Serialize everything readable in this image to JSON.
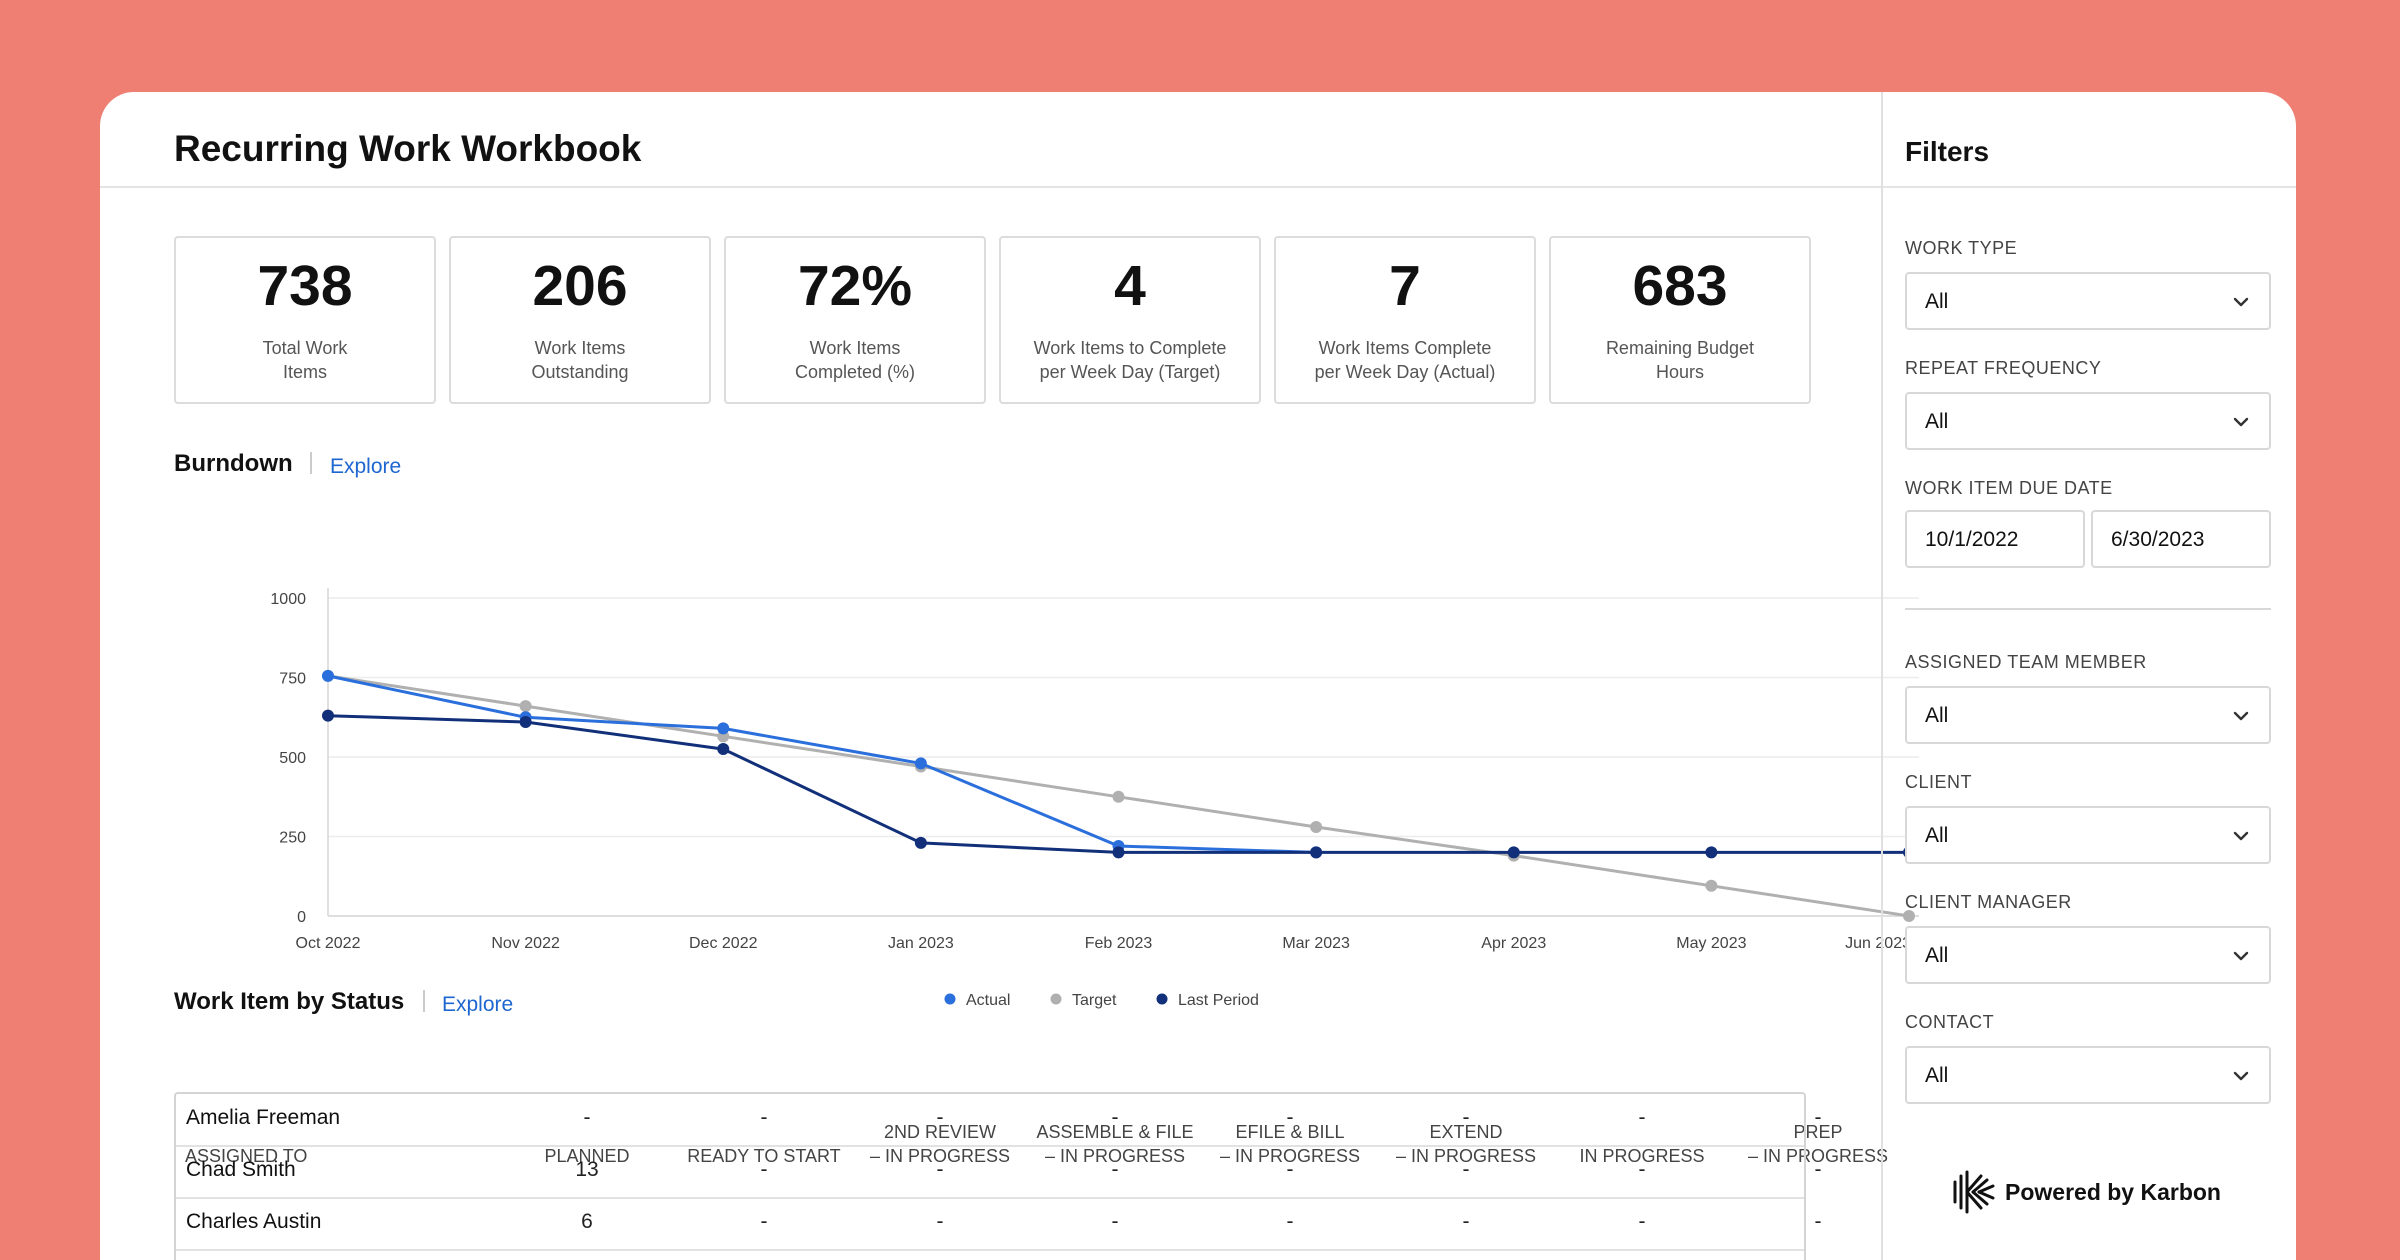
{
  "page": {
    "title": "Recurring Work Workbook"
  },
  "kpis": [
    {
      "value": "738",
      "label_line1": "Total Work",
      "label_line2": "Items"
    },
    {
      "value": "206",
      "label_line1": "Work Items",
      "label_line2": "Outstanding"
    },
    {
      "value": "72%",
      "label_line1": "Work Items",
      "label_line2": "Completed (%)"
    },
    {
      "value": "4",
      "label_line1": "Work Items to Complete",
      "label_line2": "per Week Day (Target)"
    },
    {
      "value": "7",
      "label_line1": "Work Items Complete",
      "label_line2": "per Week Day (Actual)"
    },
    {
      "value": "683",
      "label_line1": "Remaining Budget",
      "label_line2": "Hours"
    }
  ],
  "burndown": {
    "title": "Burndown",
    "explore": "Explore"
  },
  "chart_data": {
    "type": "line",
    "title": "Burndown",
    "categories": [
      "Oct 2022",
      "Nov 2022",
      "Dec 2022",
      "Jan 2023",
      "Feb 2023",
      "Mar 2023",
      "Apr 2023",
      "May 2023",
      "Jun 2023"
    ],
    "yticks": [
      "0",
      "250",
      "500",
      "750",
      "1000"
    ],
    "ylim": [
      0,
      1000
    ],
    "grid": true,
    "legend_position": "bottom",
    "series": [
      {
        "name": "Actual",
        "color": "#2a6fdb",
        "values": [
          755,
          625,
          590,
          480,
          220,
          200,
          null,
          null,
          null
        ]
      },
      {
        "name": "Target",
        "color": "#b0b0b0",
        "values": [
          755,
          660,
          565,
          470,
          375,
          280,
          190,
          95,
          0
        ]
      },
      {
        "name": "Last Period",
        "color": "#12307a",
        "values": [
          630,
          610,
          525,
          230,
          200,
          200,
          200,
          200,
          200
        ]
      }
    ]
  },
  "status": {
    "title": "Work Item by Status",
    "explore": "Explore",
    "columns": [
      {
        "line1": "ASSIGNED TO",
        "line2": ""
      },
      {
        "line1": "PLANNED",
        "line2": ""
      },
      {
        "line1": "READY TO START",
        "line2": ""
      },
      {
        "line1": "2ND REVIEW",
        "line2": "– IN PROGRESS"
      },
      {
        "line1": "ASSEMBLE & FILE",
        "line2": "– IN PROGRESS"
      },
      {
        "line1": "EFILE & BILL",
        "line2": "– IN PROGRESS"
      },
      {
        "line1": "EXTEND",
        "line2": "– IN PROGRESS"
      },
      {
        "line1": "IN PROGRESS",
        "line2": ""
      },
      {
        "line1": "PREP",
        "line2": "– IN PROGRESS"
      }
    ],
    "rows": [
      {
        "name": "Amelia Freeman",
        "cells": [
          "-",
          "-",
          "-",
          "-",
          "-",
          "-",
          "-",
          "-"
        ]
      },
      {
        "name": "Chad Smith",
        "cells": [
          "13",
          "-",
          "-",
          "-",
          "-",
          "-",
          "-",
          "-"
        ]
      },
      {
        "name": "Charles Austin",
        "cells": [
          "6",
          "-",
          "-",
          "-",
          "-",
          "-",
          "-",
          "-"
        ]
      }
    ]
  },
  "filters": {
    "title": "Filters",
    "work_type": {
      "label": "WORK TYPE",
      "value": "All"
    },
    "repeat_frequency": {
      "label": "REPEAT FREQUENCY",
      "value": "All"
    },
    "due_date": {
      "label": "WORK ITEM DUE DATE",
      "from": "10/1/2022",
      "to": "6/30/2023"
    },
    "team_member": {
      "label": "ASSIGNED TEAM MEMBER",
      "value": "All"
    },
    "client": {
      "label": "CLIENT",
      "value": "All"
    },
    "client_manager": {
      "label": "CLIENT MANAGER",
      "value": "All"
    },
    "contact": {
      "label": "CONTACT",
      "value": "All"
    }
  },
  "footer": {
    "powered_by": "Powered by Karbon",
    "logo_icon": "karbon-logo-icon"
  }
}
